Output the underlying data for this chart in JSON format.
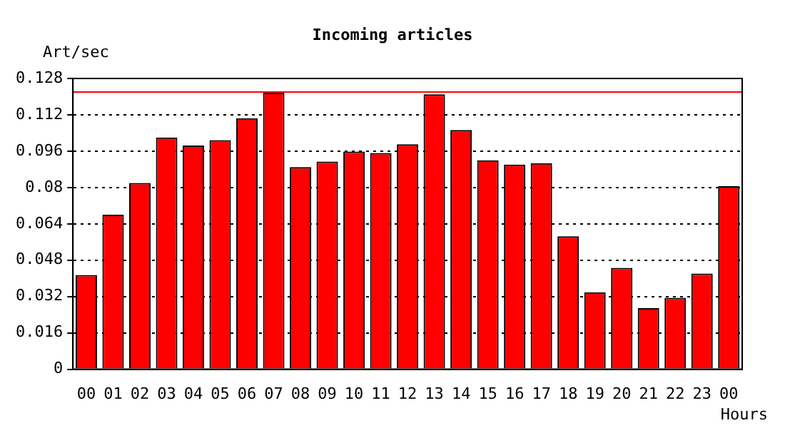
{
  "chart_data": {
    "type": "bar",
    "title": "Incoming articles",
    "xlabel": "Hours",
    "ylabel": "Art/sec",
    "categories": [
      "00",
      "01",
      "02",
      "03",
      "04",
      "05",
      "06",
      "07",
      "08",
      "09",
      "10",
      "11",
      "12",
      "13",
      "14",
      "15",
      "16",
      "17",
      "18",
      "19",
      "20",
      "21",
      "22",
      "23",
      "00"
    ],
    "values": [
      0.0415,
      0.068,
      0.082,
      0.102,
      0.0985,
      0.1008,
      0.1105,
      0.1217,
      0.089,
      0.0914,
      0.0958,
      0.0952,
      0.099,
      0.121,
      0.1053,
      0.092,
      0.0901,
      0.0907,
      0.0585,
      0.0339,
      0.0446,
      0.0269,
      0.0314,
      0.0421,
      0.0806
    ],
    "color": "#ff0000",
    "ylim": [
      0,
      0.128
    ],
    "yticks": [
      0,
      0.016,
      0.032,
      0.048,
      0.064,
      0.08,
      0.096,
      0.112,
      0.128
    ],
    "grid": "y",
    "ref_lines": [
      {
        "axis": "y",
        "value": 0.122,
        "color": "#ff0000"
      }
    ]
  }
}
